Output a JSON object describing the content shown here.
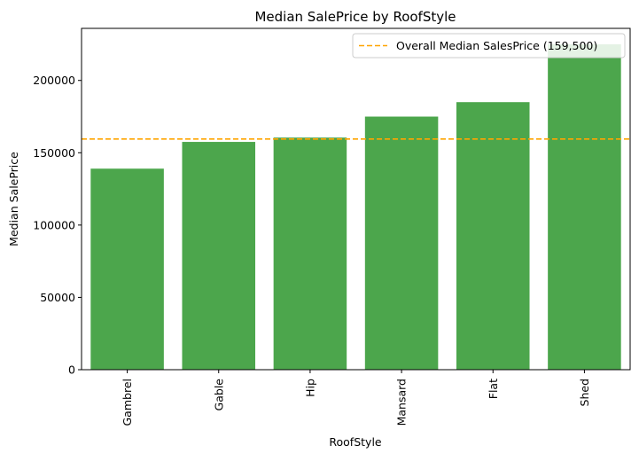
{
  "chart_data": {
    "type": "bar",
    "title": "Median SalePrice by RoofStyle",
    "xlabel": "RoofStyle",
    "ylabel": "Median SalePrice",
    "categories": [
      "Gambrel",
      "Gable",
      "Hip",
      "Mansard",
      "Flat",
      "Shed"
    ],
    "values": [
      139000,
      157500,
      160500,
      175000,
      185000,
      225000
    ],
    "ylim": [
      0,
      236000
    ],
    "yticks": [
      0,
      50000,
      100000,
      150000,
      200000
    ],
    "ytick_labels": [
      "0",
      "50000",
      "100000",
      "150000",
      "200000"
    ],
    "bar_color": "#4ca64c",
    "reference_line": {
      "value": 159500,
      "label": "Overall Median SalesPrice (159,500)",
      "color": "#ffa500",
      "style": "dashed"
    },
    "legend_position": "top-right",
    "grid": false
  }
}
